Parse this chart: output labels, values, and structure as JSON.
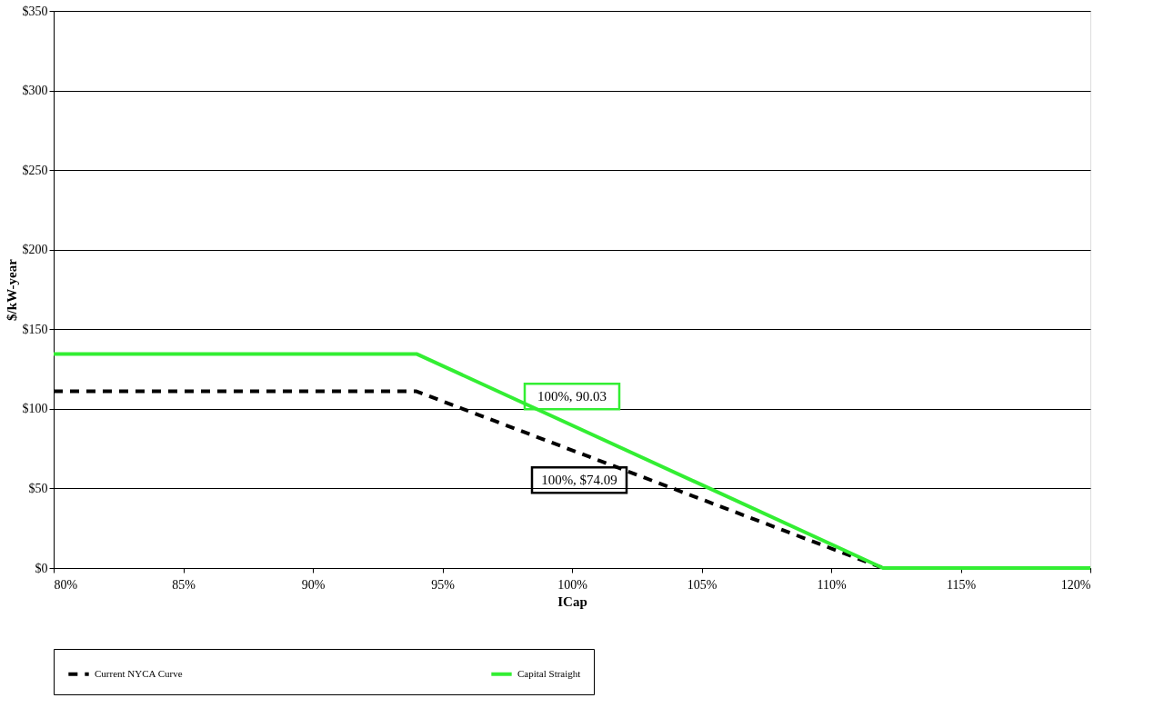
{
  "chart_data": {
    "type": "line",
    "xlabel": "ICap",
    "ylabel": "$/kW-year",
    "xlim": [
      80,
      120
    ],
    "ylim": [
      0,
      350
    ],
    "xticks": [
      {
        "value": 80,
        "label": "80%"
      },
      {
        "value": 85,
        "label": "85%"
      },
      {
        "value": 90,
        "label": "90%"
      },
      {
        "value": 95,
        "label": "95%"
      },
      {
        "value": 100,
        "label": "100%"
      },
      {
        "value": 105,
        "label": "105%"
      },
      {
        "value": 110,
        "label": "110%"
      },
      {
        "value": 115,
        "label": "115%"
      },
      {
        "value": 120,
        "label": "120%"
      }
    ],
    "yticks": [
      {
        "value": 0,
        "label": "$0"
      },
      {
        "value": 50,
        "label": "$50"
      },
      {
        "value": 100,
        "label": "$100"
      },
      {
        "value": 150,
        "label": "$150"
      },
      {
        "value": 200,
        "label": "$200"
      },
      {
        "value": 250,
        "label": "$250"
      },
      {
        "value": 300,
        "label": "$300"
      },
      {
        "value": 350,
        "label": "$350"
      }
    ],
    "grid": "y",
    "legend": "bottom",
    "marker": "none",
    "series": [
      {
        "name": "Current NYCA Curve",
        "color": "#000000",
        "line_style": "dashed",
        "x": [
          80,
          94,
          112
        ],
        "values": [
          111,
          111,
          0
        ]
      },
      {
        "name": "Capital Straight",
        "color": "#33ee33",
        "line_style": "solid",
        "x": [
          80,
          94,
          112,
          120
        ],
        "values": [
          134.5,
          134.5,
          0,
          0
        ]
      }
    ],
    "annotations": [
      {
        "text": "100%, $74.09",
        "x": 100,
        "y": 74.09
      },
      {
        "text": "100%, 90.03",
        "x": 100,
        "y": 90.03
      }
    ]
  }
}
